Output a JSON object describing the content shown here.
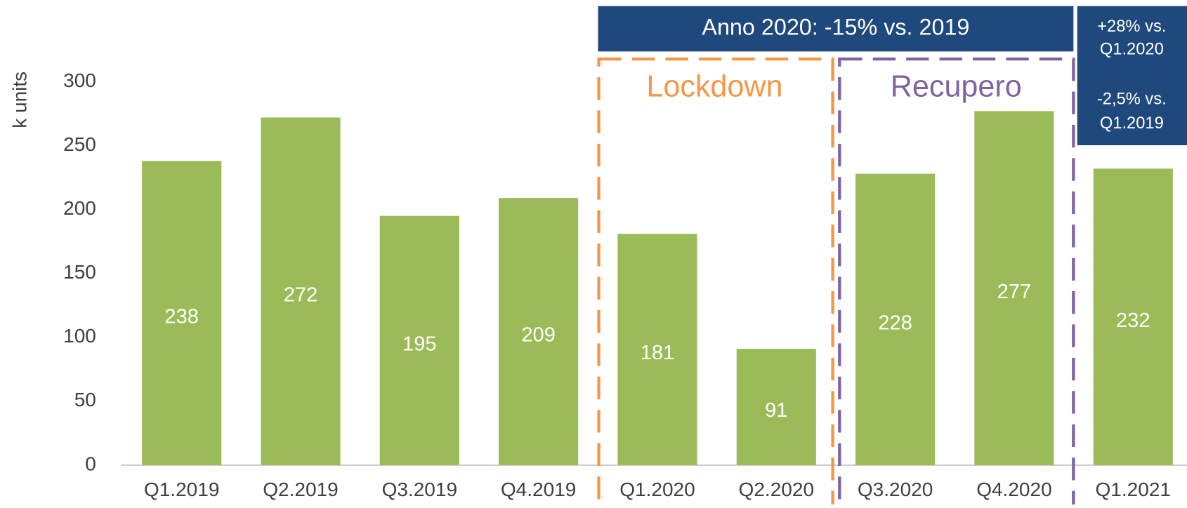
{
  "chart_data": {
    "type": "bar",
    "y_label": "k units",
    "categories": [
      "Q1.2019",
      "Q2.2019",
      "Q3.2019",
      "Q4.2019",
      "Q1.2020",
      "Q2.2020",
      "Q3.2020",
      "Q4.2020",
      "Q1.2021"
    ],
    "values": [
      238,
      272,
      195,
      209,
      181,
      91,
      228,
      277,
      232
    ],
    "color": "#9bbb59",
    "ylim": [
      0,
      300
    ],
    "yticks": [
      0,
      50,
      100,
      150,
      200,
      250,
      300
    ],
    "annotations": {
      "banner": "Anno 2020: -15% vs. 2019",
      "lockdown": "Lockdown",
      "recupero": "Recupero",
      "note": [
        "+28% vs.",
        "Q1.2020",
        "-2,5% vs.",
        "Q1.2019"
      ]
    }
  }
}
